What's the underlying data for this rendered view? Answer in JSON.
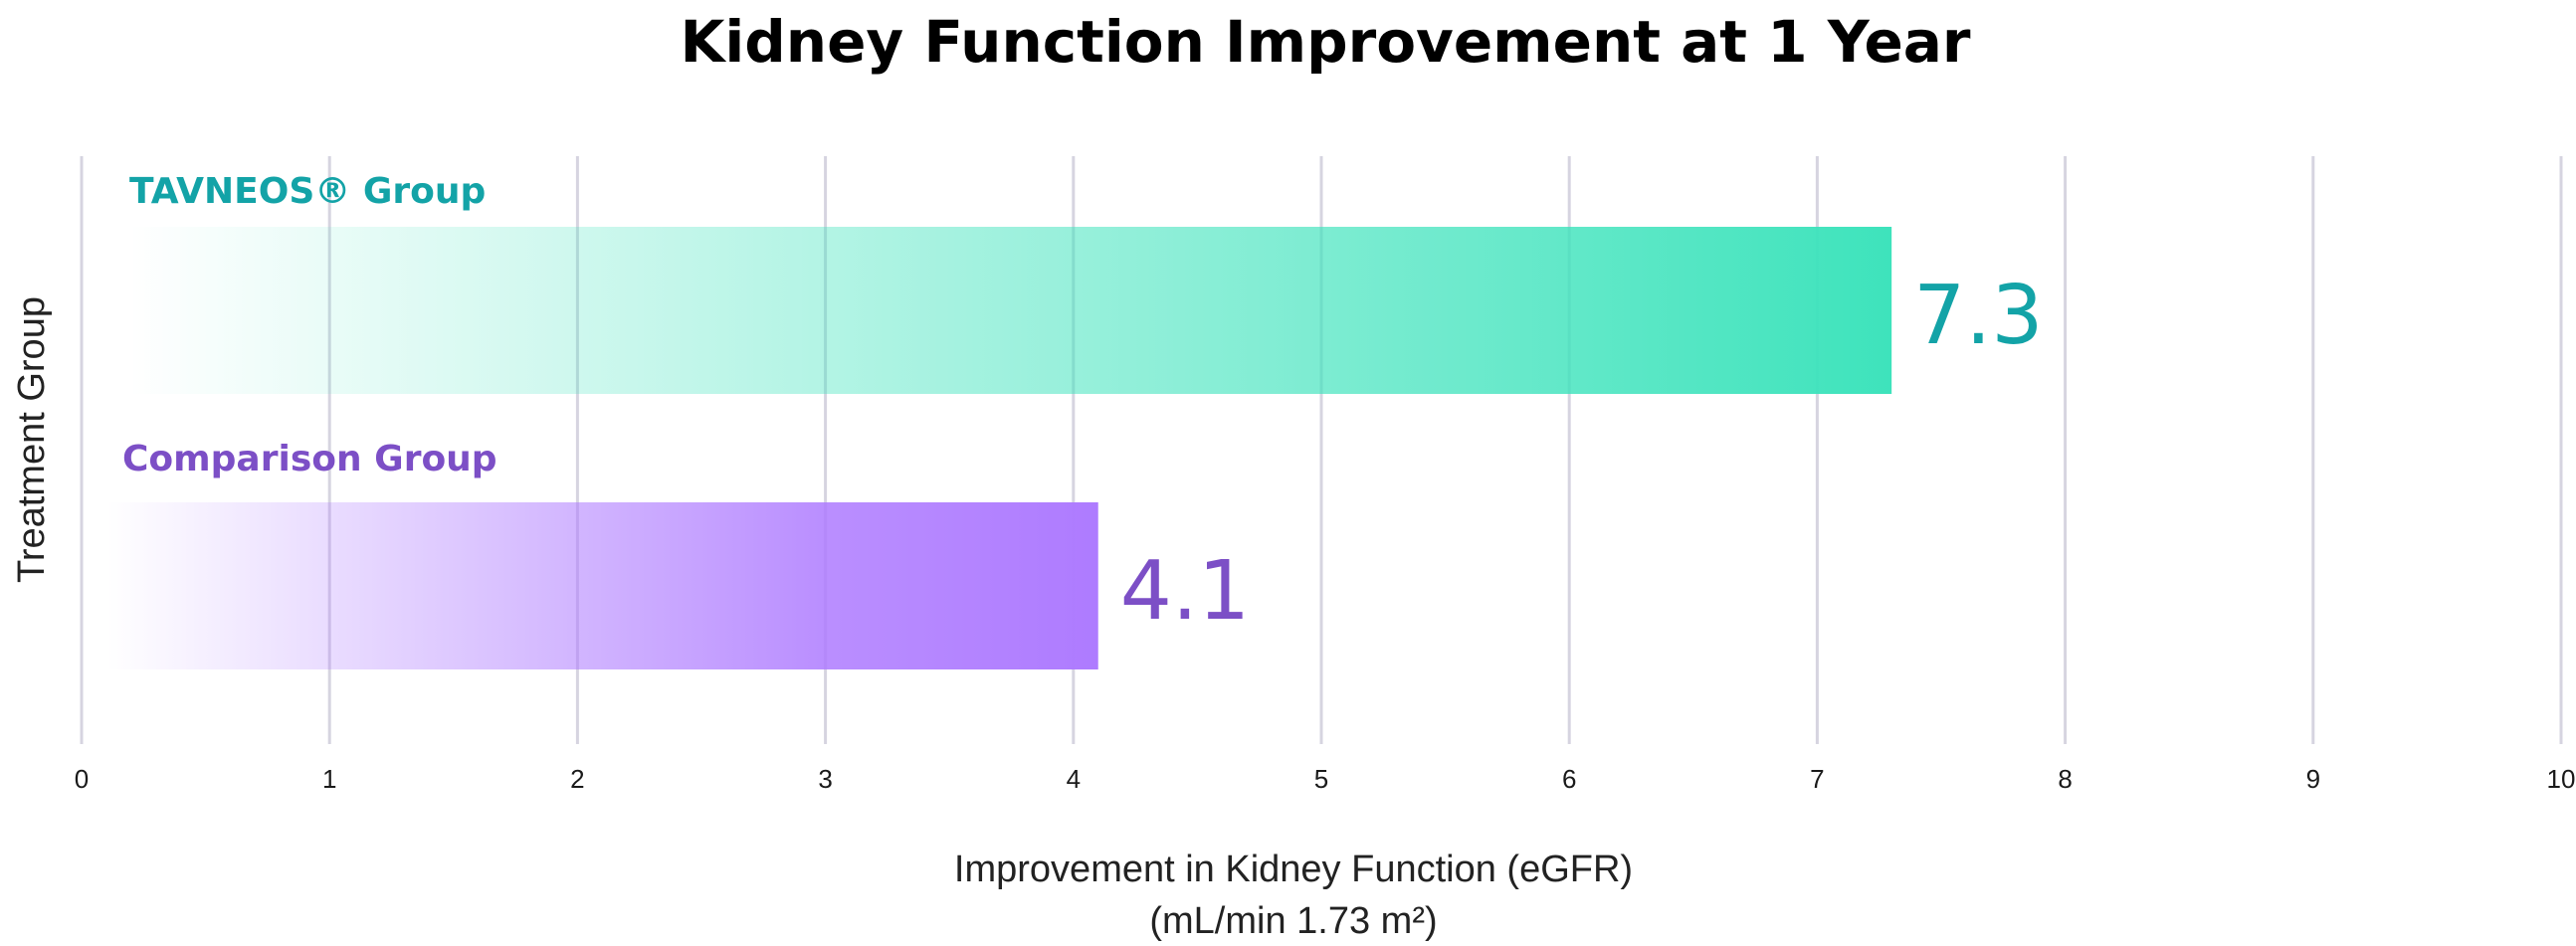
{
  "chart_data": {
    "type": "bar",
    "orientation": "horizontal",
    "title": "Kidney Function Improvement at 1 Year",
    "xlabel": "Improvement in Kidney Function (eGFR)",
    "xlabel_units": "(mL/min 1.73 m²)",
    "ylabel": "Treatment Group",
    "xlim": [
      0,
      10
    ],
    "xticks": [
      "0",
      "1",
      "2",
      "3",
      "4",
      "5",
      "6",
      "7",
      "8",
      "9",
      "10"
    ],
    "grid": "vertical",
    "categories": [
      "TAVNEOS® Group",
      "Comparison Group"
    ],
    "values": [
      7.3,
      4.1
    ],
    "data_labels": [
      "7.3",
      "4.1"
    ],
    "colors": {
      "TAVNEOS® Group": "#3ee3bc",
      "Comparison Group": "#ae7bff",
      "tavneos_label": "#13a3a7",
      "comparison_label": "#7c4fc6",
      "grid": "#d6d4e0"
    }
  }
}
